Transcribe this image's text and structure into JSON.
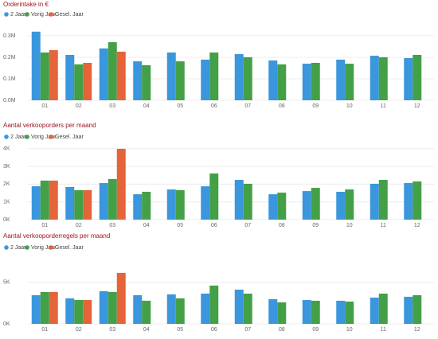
{
  "chart_data": [
    {
      "type": "bar",
      "title": "Orderintake in €",
      "categories": [
        "01",
        "02",
        "03",
        "04",
        "05",
        "06",
        "07",
        "08",
        "09",
        "10",
        "11",
        "12"
      ],
      "series": [
        {
          "name": "2 Jaar",
          "color": "#3a96dd",
          "values": [
            0.319,
            0.211,
            0.241,
            0.181,
            0.222,
            0.189,
            0.215,
            0.185,
            0.17,
            0.189,
            0.207,
            0.196
          ]
        },
        {
          "name": "Vorig Jaar",
          "color": "#43a046",
          "values": [
            0.222,
            0.167,
            0.27,
            0.163,
            0.181,
            0.222,
            0.2,
            0.167,
            0.174,
            0.17,
            0.2,
            0.211
          ]
        },
        {
          "name": "Gesel. Jaar",
          "color": "#e5643a",
          "values": [
            0.233,
            0.174,
            0.226,
            null,
            null,
            null,
            null,
            null,
            null,
            null,
            null,
            null
          ]
        }
      ],
      "ylim": [
        0,
        0.333
      ],
      "yticks": [
        {
          "value": 0,
          "label": "0.0M"
        },
        {
          "value": 0.1,
          "label": "0.1M"
        },
        {
          "value": 0.2,
          "label": "0.2M"
        },
        {
          "value": 0.3,
          "label": "0.3M"
        }
      ],
      "grid": true
    },
    {
      "type": "bar",
      "title": "Aantal verkooporders per maand",
      "categories": [
        "01",
        "02",
        "03",
        "04",
        "05",
        "06",
        "07",
        "08",
        "09",
        "10",
        "11",
        "12"
      ],
      "series": [
        {
          "name": "2 Jaar",
          "color": "#3a96dd",
          "values": [
            1.88,
            1.84,
            2.06,
            1.43,
            1.7,
            1.88,
            2.24,
            1.43,
            1.61,
            1.57,
            2.02,
            2.06
          ]
        },
        {
          "name": "Vorig Jaar",
          "color": "#43a046",
          "values": [
            2.2,
            1.66,
            2.29,
            1.57,
            1.66,
            2.6,
            2.02,
            1.52,
            1.79,
            1.7,
            2.24,
            2.15
          ]
        },
        {
          "name": "Gesel. Jaar",
          "color": "#e5643a",
          "values": [
            2.2,
            1.66,
            3.99,
            null,
            null,
            null,
            null,
            null,
            null,
            null,
            null,
            null
          ]
        }
      ],
      "ylim": [
        0,
        4.17
      ],
      "yticks": [
        {
          "value": 0,
          "label": "0K"
        },
        {
          "value": 1,
          "label": "1K"
        },
        {
          "value": 2,
          "label": "2K"
        },
        {
          "value": 3,
          "label": "3K"
        },
        {
          "value": 4,
          "label": "4K"
        }
      ],
      "grid": true
    },
    {
      "type": "bar",
      "title": "Aantal verkooporderregels per maand",
      "categories": [
        "01",
        "02",
        "03",
        "04",
        "05",
        "06",
        "07",
        "08",
        "09",
        "10",
        "11",
        "12"
      ],
      "series": [
        {
          "name": "2 Jaar",
          "color": "#3a96dd",
          "values": [
            3.46,
            3.08,
            3.94,
            3.46,
            3.56,
            3.65,
            4.13,
            2.98,
            2.88,
            2.79,
            3.17,
            3.27
          ]
        },
        {
          "name": "Vorig Jaar",
          "color": "#43a046",
          "values": [
            3.85,
            2.88,
            3.85,
            2.79,
            3.08,
            4.62,
            3.65,
            2.6,
            2.79,
            2.69,
            3.65,
            3.46
          ]
        },
        {
          "name": "Gesel. Jaar",
          "color": "#e5643a",
          "values": [
            3.85,
            2.88,
            6.15,
            null,
            null,
            null,
            null,
            null,
            null,
            null,
            null,
            null
          ]
        }
      ],
      "ylim": [
        0,
        6.43
      ],
      "yticks": [
        {
          "value": 0,
          "label": "0K"
        },
        {
          "value": 5,
          "label": "5K"
        }
      ],
      "grid": true
    }
  ]
}
